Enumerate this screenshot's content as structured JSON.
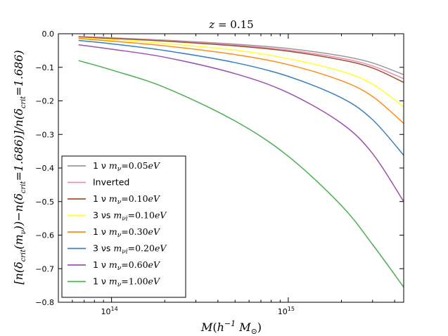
{
  "chart_data": {
    "type": "line",
    "title": "z = 0.15",
    "xlabel": "M(h⁻¹ M⊙)",
    "ylabel": "[n(δcrit(mν)) − n(δcrit=1.686)]/n(δcrit=1.686)",
    "xscale": "log",
    "xlim": [
      50000000000000.0,
      4500000000000000.0
    ],
    "ylim": [
      -0.8,
      0.0
    ],
    "yticks": [
      "0.0",
      "−0.1",
      "−0.2",
      "−0.3",
      "−0.4",
      "−0.5",
      "−0.6",
      "−0.7",
      "−0.8"
    ],
    "xticks": [
      {
        "value": 100000000000000.0,
        "base": "10",
        "exp": "14"
      },
      {
        "value": 1000000000000000.0,
        "base": "10",
        "exp": "15"
      }
    ],
    "legend_position": "lower-left",
    "x": [
      65000000000000.0,
      100000000000000.0,
      200000000000000.0,
      500000000000000.0,
      1000000000000000.0,
      2000000000000000.0,
      3000000000000000.0,
      4500000000000000.0
    ],
    "series": [
      {
        "name": "1 ν mν=0.05eV",
        "color": "#999999",
        "values": [
          -0.008,
          -0.012,
          -0.019,
          -0.031,
          -0.044,
          -0.066,
          -0.087,
          -0.122
        ]
      },
      {
        "name": "Inverted",
        "color": "#ee8ab8",
        "values": [
          -0.009,
          -0.013,
          -0.021,
          -0.034,
          -0.049,
          -0.073,
          -0.096,
          -0.134
        ]
      },
      {
        "name": "1 ν mν=0.10eV",
        "color": "#a0522d",
        "values": [
          -0.01,
          -0.014,
          -0.022,
          -0.036,
          -0.052,
          -0.078,
          -0.102,
          -0.145
        ]
      },
      {
        "name": "3 νs mνi=0.10eV",
        "color": "#ffff33",
        "values": [
          -0.012,
          -0.018,
          -0.029,
          -0.049,
          -0.074,
          -0.112,
          -0.15,
          -0.218
        ]
      },
      {
        "name": "1 ν mν=0.30eV",
        "color": "#ff8c1a",
        "values": [
          -0.014,
          -0.022,
          -0.036,
          -0.062,
          -0.092,
          -0.14,
          -0.187,
          -0.267
        ]
      },
      {
        "name": "3 νs mνi=0.20eV",
        "color": "#3a7fc0",
        "values": [
          -0.02,
          -0.03,
          -0.05,
          -0.086,
          -0.127,
          -0.191,
          -0.256,
          -0.362
        ]
      },
      {
        "name": "1 ν mν=0.60eV",
        "color": "#9b4fb0",
        "values": [
          -0.033,
          -0.046,
          -0.07,
          -0.119,
          -0.176,
          -0.267,
          -0.357,
          -0.5
        ]
      },
      {
        "name": "1 ν mν=1.00eV",
        "color": "#4caf50",
        "values": [
          -0.08,
          -0.108,
          -0.16,
          -0.26,
          -0.365,
          -0.512,
          -0.628,
          -0.755
        ]
      }
    ]
  },
  "legend": [
    {
      "pre": "1 ν ",
      "m": "m",
      "sub": "ν",
      "eq": "=0.05",
      "unit": "eV",
      "plain": ""
    },
    {
      "pre": "",
      "m": "",
      "sub": "",
      "eq": "",
      "unit": "",
      "plain": "Inverted"
    },
    {
      "pre": "1 ν ",
      "m": "m",
      "sub": "ν",
      "eq": "=0.10",
      "unit": "eV",
      "plain": ""
    },
    {
      "pre": "3 νs ",
      "m": "m",
      "sub": "νi",
      "eq": "=0.10",
      "unit": "eV",
      "plain": ""
    },
    {
      "pre": "1 ν ",
      "m": "m",
      "sub": "ν",
      "eq": "=0.30",
      "unit": "eV",
      "plain": ""
    },
    {
      "pre": "3 νs ",
      "m": "m",
      "sub": "νi",
      "eq": "=0.20",
      "unit": "eV",
      "plain": ""
    },
    {
      "pre": "1 ν ",
      "m": "m",
      "sub": "ν",
      "eq": "=0.60",
      "unit": "eV",
      "plain": ""
    },
    {
      "pre": "1 ν ",
      "m": "m",
      "sub": "ν",
      "eq": "=1.00",
      "unit": "eV",
      "plain": ""
    }
  ],
  "title_parts": {
    "var": "z",
    "eq": " = 0.15"
  },
  "xlabel_parts": {
    "m": "M",
    "open": "(",
    "h": "h",
    "hexp": "−1",
    "msun": " M",
    "sun": "⊙",
    "close": ")"
  },
  "ylabel_parts": {
    "a": "[n(δ",
    "a_sub": "crit",
    "b": "(m",
    "b_sub": "ν",
    "c": "))−n(δ",
    "c_sub": "crit",
    "d": "=1.686)]/n(δ",
    "d_sub": "crit",
    "e": "=1.686)"
  }
}
